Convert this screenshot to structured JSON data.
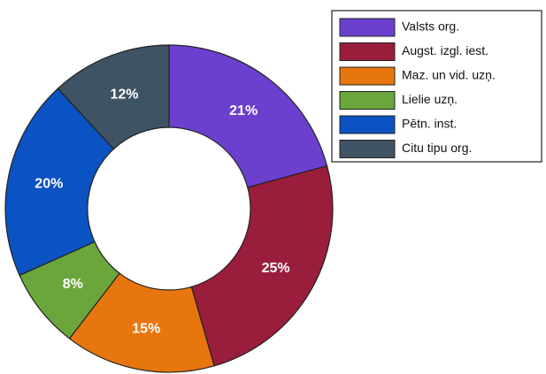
{
  "chart_data": {
    "type": "donut",
    "categories": [
      "Valsts org.",
      "Augst. izgl. iest.",
      "Maz. un vid. uzņ.",
      "Lielie uzņ.",
      "Pētn. inst.",
      "Citu tipu org."
    ],
    "values": [
      21,
      25,
      15,
      8,
      20,
      12
    ],
    "value_labels": [
      "21%",
      "25%",
      "15%",
      "8%",
      "20%",
      "12%"
    ],
    "colors": [
      "#6b40cf",
      "#9a1d3b",
      "#e8760f",
      "#6aa63b",
      "#0b52c2",
      "#3e5364"
    ],
    "legend": "top-right"
  }
}
